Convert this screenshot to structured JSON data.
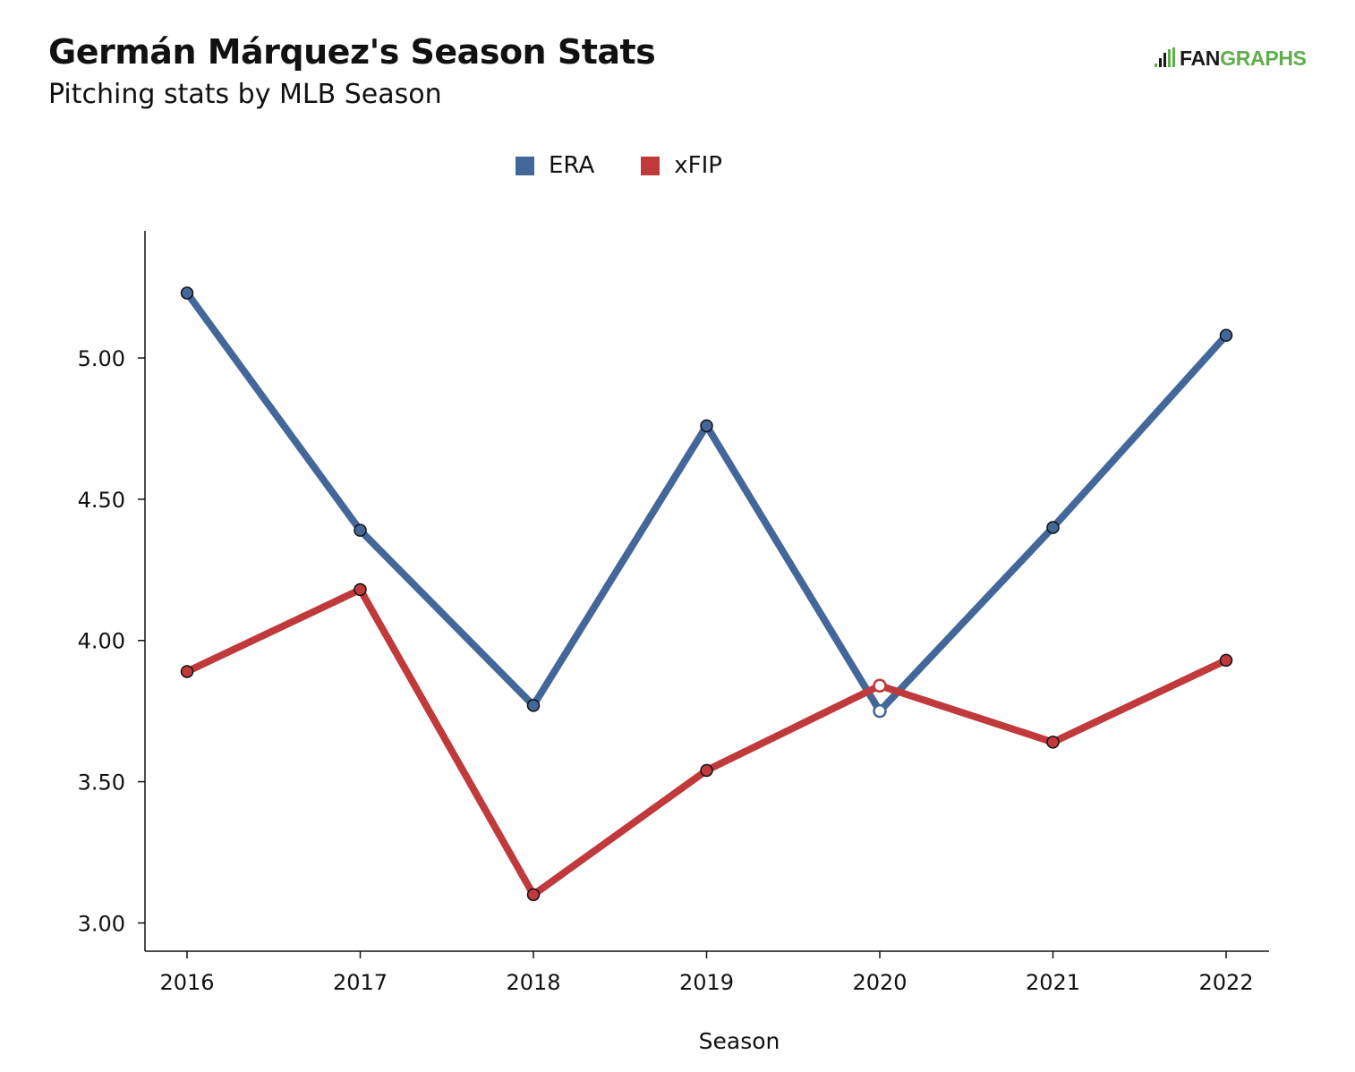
{
  "header": {
    "title": "Germán Márquez's Season Stats",
    "subtitle": "Pitching stats by MLB Season"
  },
  "logo": {
    "part1": "FAN",
    "part2": "GRAPHS",
    "colors": {
      "dark": "#1a1a1a",
      "green": "#5fae4b"
    }
  },
  "chart_data": {
    "type": "line",
    "x": [
      2016,
      2017,
      2018,
      2019,
      2020,
      2021,
      2022
    ],
    "series": [
      {
        "name": "ERA",
        "color": "#44679a",
        "values": [
          5.23,
          4.39,
          3.77,
          4.76,
          3.75,
          4.4,
          5.08
        ]
      },
      {
        "name": "xFIP",
        "color": "#c0393b",
        "values": [
          3.89,
          4.18,
          3.1,
          3.54,
          3.84,
          3.64,
          3.93
        ]
      }
    ],
    "highlighted_x": 2020,
    "xlabel": "Season",
    "ylabel": "",
    "ylim": [
      2.9,
      5.45
    ],
    "yticks": [
      3.0,
      3.5,
      4.0,
      4.5,
      5.0
    ],
    "ytick_labels": [
      "3.00",
      "3.50",
      "4.00",
      "4.50",
      "5.00"
    ],
    "xtick_labels": [
      "2016",
      "2017",
      "2018",
      "2019",
      "2020",
      "2021",
      "2022"
    ],
    "legend_position": "top-center",
    "grid": false
  }
}
